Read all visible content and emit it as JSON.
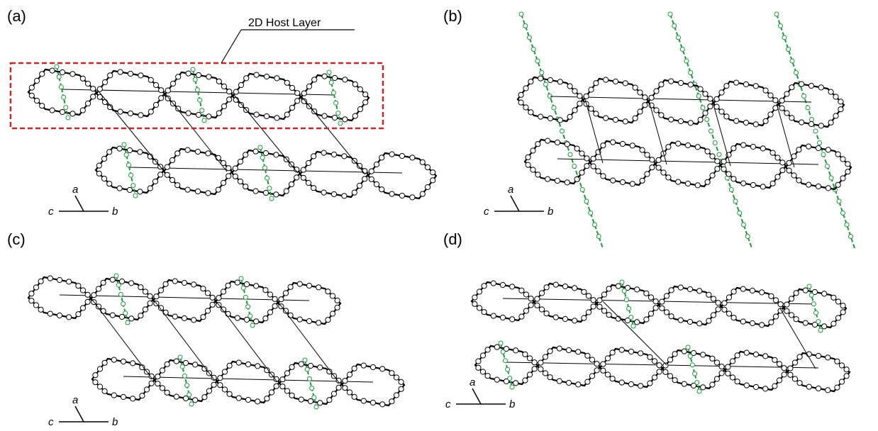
{
  "panels": [
    {
      "label": "(a)",
      "axis_a": "a",
      "axis_b": "b",
      "axis_c": "c"
    },
    {
      "label": "(b)",
      "axis_a": "a",
      "axis_b": "b",
      "axis_c": "c"
    },
    {
      "label": "(c)",
      "axis_a": "a",
      "axis_b": "b",
      "axis_c": "c"
    },
    {
      "label": "(d)",
      "axis_a": "a",
      "axis_b": "b",
      "axis_c": "c"
    }
  ],
  "annotation": "2D Host Layer"
}
